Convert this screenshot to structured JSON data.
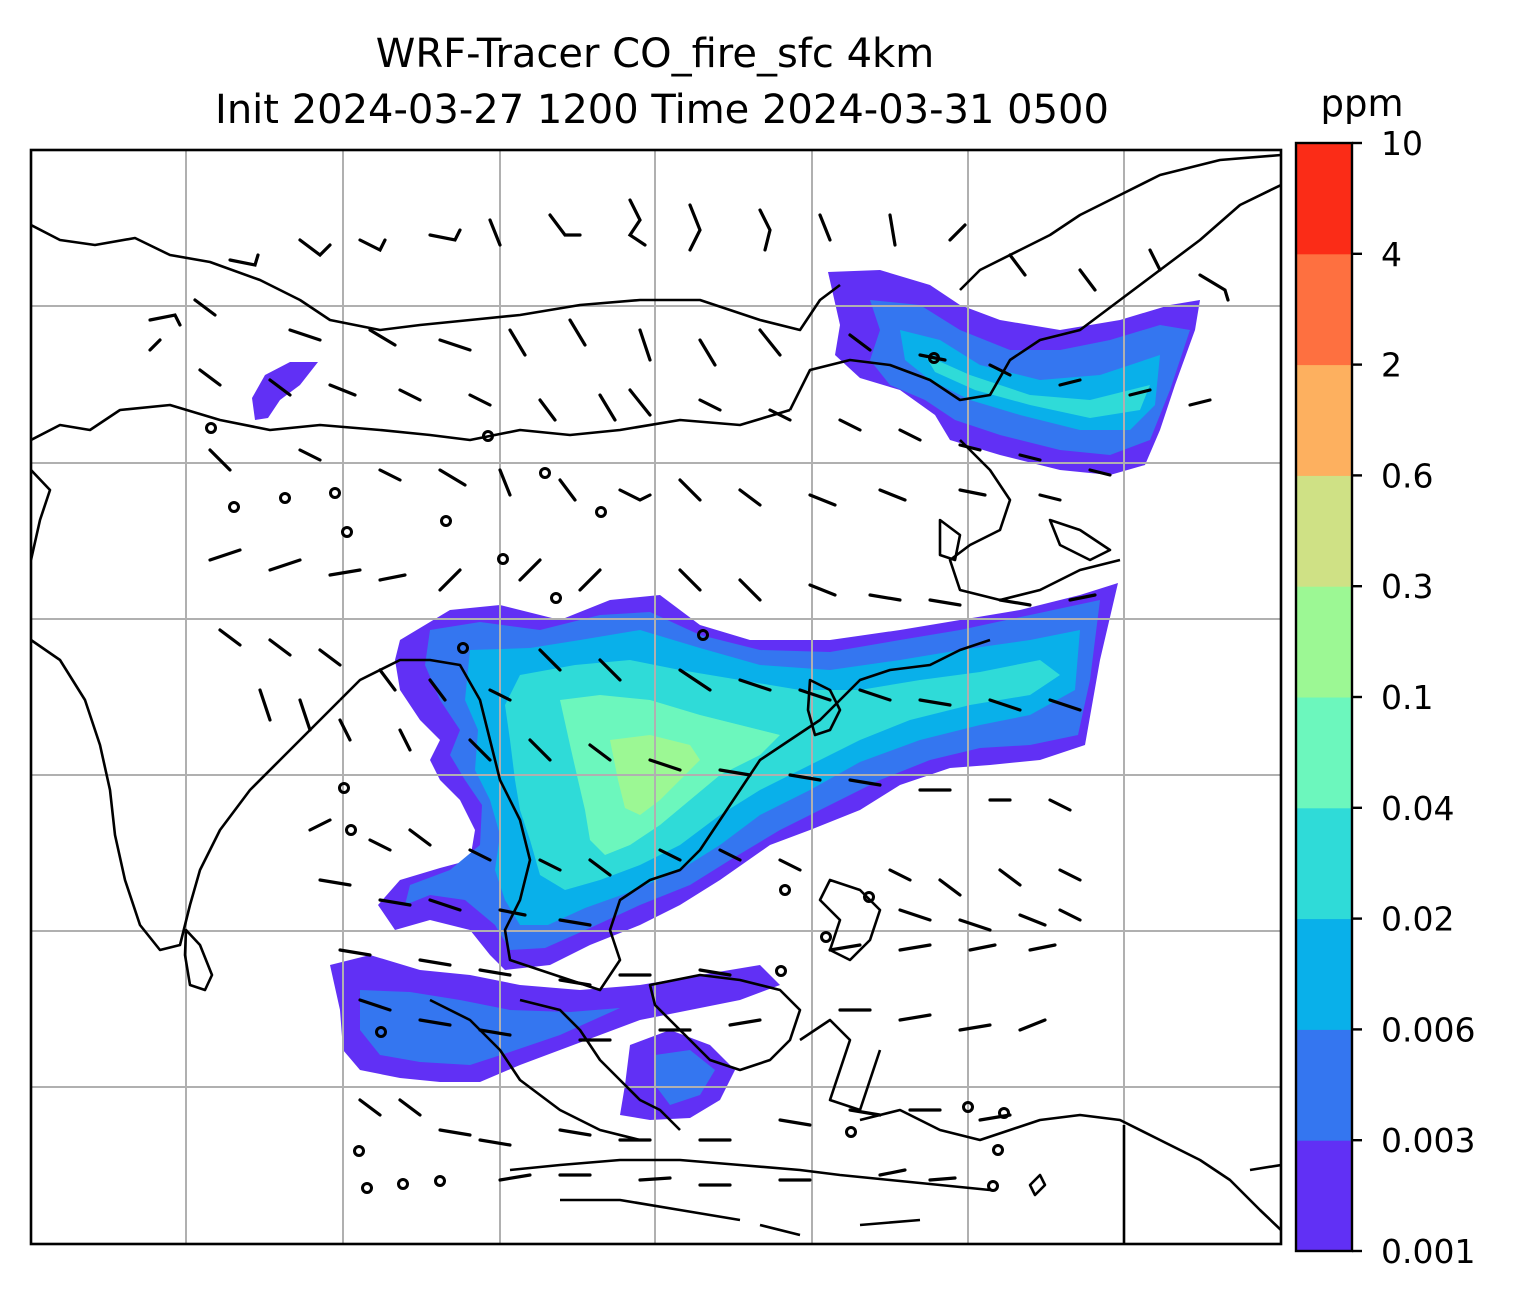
{
  "title": {
    "line1": "WRF-Tracer CO_fire_sfc 4km",
    "line2": "Init 2024-03-27 1200 Time 2024-03-31 0500"
  },
  "colorbar": {
    "unit": "ppm",
    "levels": [
      "0.001",
      "0.003",
      "0.006",
      "0.02",
      "0.04",
      "0.1",
      "0.3",
      "0.6",
      "2",
      "4",
      "10"
    ],
    "colors": [
      "#6130f5",
      "#3476f0",
      "#09b0ea",
      "#2fdbd8",
      "#6cf7bd",
      "#9cf894",
      "#cfe185",
      "#fdb05f",
      "#fe7040",
      "#fb2c17"
    ]
  },
  "map": {
    "field": "CO_fire_sfc",
    "overlay": "wind barbs",
    "coastline_color": "#000000",
    "grid": true
  }
}
